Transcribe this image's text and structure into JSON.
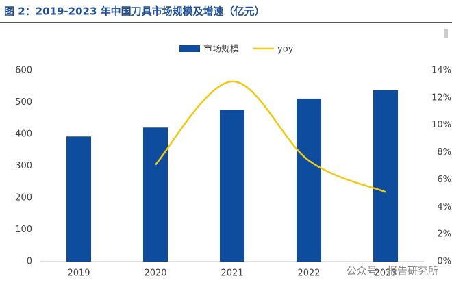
{
  "chart_data": {
    "type": "bar-line",
    "title": "图 2：2019-2023 年中国刀具市场规模及增速（亿元）",
    "watermark": "公众号 · 报告研究所",
    "categories": [
      "2019",
      "2020",
      "2021",
      "2022",
      "2023"
    ],
    "series": [
      {
        "name": "市场规模",
        "type": "bar",
        "color": "#0e4c9e",
        "values": [
          393,
          421,
          477,
          512,
          538
        ]
      },
      {
        "name": "yoy",
        "type": "line",
        "axis": "y2",
        "color": "#f2c811",
        "values": [
          null,
          7.1,
          13.2,
          7.4,
          5.1
        ]
      }
    ],
    "ylim": [
      0,
      600
    ],
    "yticks": [
      0,
      100,
      200,
      300,
      400,
      500,
      600
    ],
    "y2lim": [
      0,
      14
    ],
    "y2ticks": [
      {
        "value": 0,
        "label": "0%"
      },
      {
        "value": 2,
        "label": "2%"
      },
      {
        "value": 4,
        "label": "4%"
      },
      {
        "value": 6,
        "label": "6%"
      },
      {
        "value": 8,
        "label": "8%"
      },
      {
        "value": 10,
        "label": "10%"
      },
      {
        "value": 12,
        "label": "12%"
      },
      {
        "value": 14,
        "label": "14%"
      }
    ],
    "legend": "top"
  }
}
